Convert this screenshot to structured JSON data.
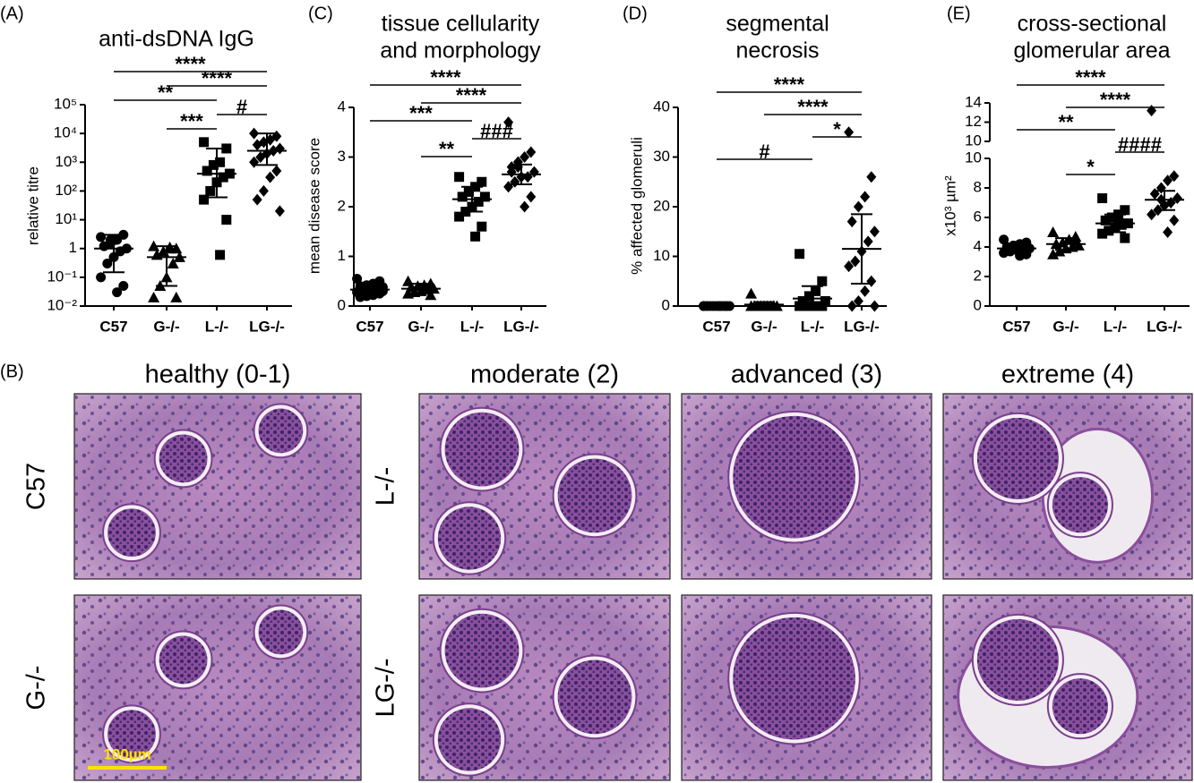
{
  "chart_data": [
    {
      "type": "scatter",
      "panel": "(A)",
      "title": [
        "anti-dsDNA IgG"
      ],
      "y_label": "relative titre",
      "log_y": true,
      "categories": [
        "C57",
        "G-/-",
        "L-/-",
        "LG-/-"
      ],
      "markers": [
        "circle",
        "triangle",
        "square",
        "diamond"
      ],
      "color": "#000000",
      "ylim": [
        0.01,
        100000
      ],
      "yticks": [
        {
          "value": 0.01,
          "label": "10⁻²"
        },
        {
          "value": 0.1,
          "label": "10⁻¹"
        },
        1,
        {
          "value": 10,
          "label": "10¹"
        },
        {
          "value": 100,
          "label": "10²"
        },
        {
          "value": 1000,
          "label": "10³"
        },
        {
          "value": 10000,
          "label": "10⁴"
        },
        {
          "value": 100000,
          "label": "10⁵"
        }
      ],
      "groups": [
        {
          "points": [
            2.5,
            3,
            2,
            1.5,
            1.2,
            1,
            0.8,
            0.5,
            0.3,
            0.1,
            0.05,
            0.03,
            2
          ],
          "mean": 1,
          "error": [
            0.15,
            3
          ]
        },
        {
          "points": [
            1.2,
            1,
            1.1,
            0.8,
            0.6,
            0.5,
            0.3,
            0.1,
            0.05,
            0.02,
            0.02,
            1
          ],
          "mean": 0.5,
          "error": [
            0.05,
            1.2
          ]
        },
        {
          "points": [
            5000,
            3000,
            1000,
            800,
            500,
            400,
            300,
            200,
            100,
            50,
            10,
            0.6
          ],
          "mean": 400,
          "error": [
            60,
            3000
          ]
        },
        {
          "points": [
            10000,
            8000,
            6000,
            5000,
            4000,
            3000,
            2500,
            2000,
            1500,
            1000,
            500,
            300,
            100,
            50,
            20
          ],
          "mean": 2500,
          "error": [
            800,
            10000
          ]
        }
      ],
      "annotations": [
        {
          "from": 0,
          "to": 3,
          "label": "****"
        },
        {
          "from": 1,
          "to": 3,
          "label": "****"
        },
        {
          "from": 0,
          "to": 2,
          "label": "**"
        },
        {
          "from": 2,
          "to": 3,
          "label": "#"
        },
        {
          "from": 1,
          "to": 2,
          "label": "***"
        }
      ]
    },
    {
      "type": "scatter",
      "panel": "(C)",
      "title": [
        "tissue cellularity",
        "and morphology"
      ],
      "y_label": "mean disease score",
      "log_y": false,
      "categories": [
        "C57",
        "G-/-",
        "L-/-",
        "LG-/-"
      ],
      "markers": [
        "circle",
        "triangle",
        "square",
        "diamond"
      ],
      "color": "#000000",
      "ylim": [
        0,
        4
      ],
      "yticks": [
        0,
        1,
        2,
        3,
        4
      ],
      "groups": [
        {
          "points": [
            0.55,
            0.5,
            0.45,
            0.42,
            0.4,
            0.38,
            0.35,
            0.33,
            0.3,
            0.28,
            0.25,
            0.22,
            0.2,
            0.18,
            0.3,
            0.4
          ],
          "mean": 0.33,
          "error": [
            0.22,
            0.45
          ]
        },
        {
          "points": [
            0.5,
            0.45,
            0.42,
            0.4,
            0.38,
            0.35,
            0.33,
            0.3,
            0.28,
            0.25,
            0.22,
            0.35
          ],
          "mean": 0.35,
          "error": [
            0.25,
            0.45
          ]
        },
        {
          "points": [
            2.6,
            2.5,
            2.4,
            2.3,
            2.2,
            2.2,
            2.1,
            2.0,
            1.9,
            1.8,
            1.6,
            1.4,
            2.3
          ],
          "mean": 2.15,
          "error": [
            1.9,
            2.4
          ]
        },
        {
          "points": [
            3.7,
            3.1,
            3.0,
            2.9,
            2.8,
            2.7,
            2.6,
            2.6,
            2.5,
            2.4,
            2.2,
            2.0,
            2.8,
            2.7
          ],
          "mean": 2.65,
          "error": [
            2.45,
            2.85
          ]
        }
      ],
      "annotations": [
        {
          "from": 0,
          "to": 3,
          "label": "****"
        },
        {
          "from": 1,
          "to": 3,
          "label": "****"
        },
        {
          "from": 0,
          "to": 2,
          "label": "***"
        },
        {
          "from": 2,
          "to": 3,
          "label": "###"
        },
        {
          "from": 1,
          "to": 2,
          "label": "**"
        }
      ]
    },
    {
      "type": "scatter",
      "panel": "(D)",
      "title": [
        "segmental",
        "necrosis"
      ],
      "y_label": "% affected glomeruli",
      "log_y": false,
      "categories": [
        "C57",
        "G-/-",
        "L-/-",
        "LG-/-"
      ],
      "markers": [
        "circle",
        "triangle",
        "square",
        "diamond"
      ],
      "color": "#000000",
      "ylim": [
        0,
        40
      ],
      "yticks": [
        0,
        10,
        20,
        30,
        40
      ],
      "groups": [
        {
          "points": [
            0,
            0,
            0,
            0,
            0,
            0,
            0,
            0,
            0,
            0,
            0,
            0
          ],
          "mean": 0,
          "error": [
            0,
            0
          ]
        },
        {
          "points": [
            2.5,
            0,
            0,
            0,
            0,
            0,
            0,
            0,
            0,
            0,
            0
          ],
          "mean": 0.3,
          "error": [
            0,
            0.8
          ]
        },
        {
          "points": [
            10.5,
            5,
            3,
            2,
            1,
            1,
            0,
            0,
            0,
            0,
            0,
            0
          ],
          "mean": 1.5,
          "error": [
            0,
            4
          ]
        },
        {
          "points": [
            35,
            26,
            22,
            20,
            17,
            15,
            13,
            11,
            9,
            8,
            5,
            3,
            1,
            0,
            0
          ],
          "mean": 11.5,
          "error": [
            4.5,
            18.5
          ]
        }
      ],
      "annotations": [
        {
          "from": 0,
          "to": 3,
          "label": "****"
        },
        {
          "from": 1,
          "to": 3,
          "label": "****"
        },
        {
          "from": 2,
          "to": 3,
          "label": "*"
        },
        {
          "from": 0,
          "to": 2,
          "label": "#"
        }
      ]
    },
    {
      "type": "scatter",
      "panel": "(E)",
      "title": [
        "cross-sectional",
        "glomerular area"
      ],
      "y_label": "x10³ µm²",
      "log_y": false,
      "categories": [
        "C57",
        "G-/-",
        "L-/-",
        "LG-/-"
      ],
      "markers": [
        "circle",
        "triangle",
        "square",
        "diamond"
      ],
      "color": "#000000",
      "ylim": [
        0,
        10
      ],
      "yticks": [
        0,
        2,
        4,
        6,
        8,
        10
      ],
      "ylim_upper": [
        10,
        14
      ],
      "yticks_upper": [
        10,
        12,
        14
      ],
      "groups": [
        {
          "points": [
            4.5,
            4.3,
            4.2,
            4.1,
            4.0,
            3.9,
            3.9,
            3.8,
            3.7,
            3.6,
            3.5,
            3.4,
            4.0,
            3.8
          ],
          "mean": 3.9,
          "error": [
            3.6,
            4.2
          ]
        },
        {
          "points": [
            5.0,
            4.7,
            4.5,
            4.3,
            4.2,
            4.1,
            4.0,
            3.9,
            3.7,
            3.5,
            4.4
          ],
          "mean": 4.2,
          "error": [
            3.8,
            4.6
          ]
        },
        {
          "points": [
            7.3,
            6.5,
            6.2,
            6.0,
            5.8,
            5.6,
            5.5,
            5.3,
            5.1,
            4.9,
            4.6,
            5.7
          ],
          "mean": 5.6,
          "error": [
            5.0,
            6.2
          ]
        },
        {
          "points": [
            13.2,
            8.8,
            8.5,
            8.0,
            7.6,
            7.3,
            7.0,
            6.8,
            6.5,
            6.2,
            5.8,
            5.0,
            7.2
          ],
          "mean": 7.2,
          "error": [
            6.5,
            7.8
          ]
        }
      ],
      "annotations": [
        {
          "from": 0,
          "to": 3,
          "label": "****"
        },
        {
          "from": 1,
          "to": 3,
          "label": "****"
        },
        {
          "from": 0,
          "to": 2,
          "label": "**"
        },
        {
          "from": 2,
          "to": 3,
          "label": "####"
        },
        {
          "from": 1,
          "to": 2,
          "label": "*"
        }
      ]
    }
  ],
  "histology": {
    "panel": "(B)",
    "columns": [
      "healthy (0-1)",
      "moderate (2)",
      "advanced (3)",
      "extreme (4)"
    ],
    "rows_left": [
      "C57",
      "G-/-"
    ],
    "rows_right": [
      "L-/-",
      "LG-/-"
    ],
    "scale_bar": "100µm"
  }
}
